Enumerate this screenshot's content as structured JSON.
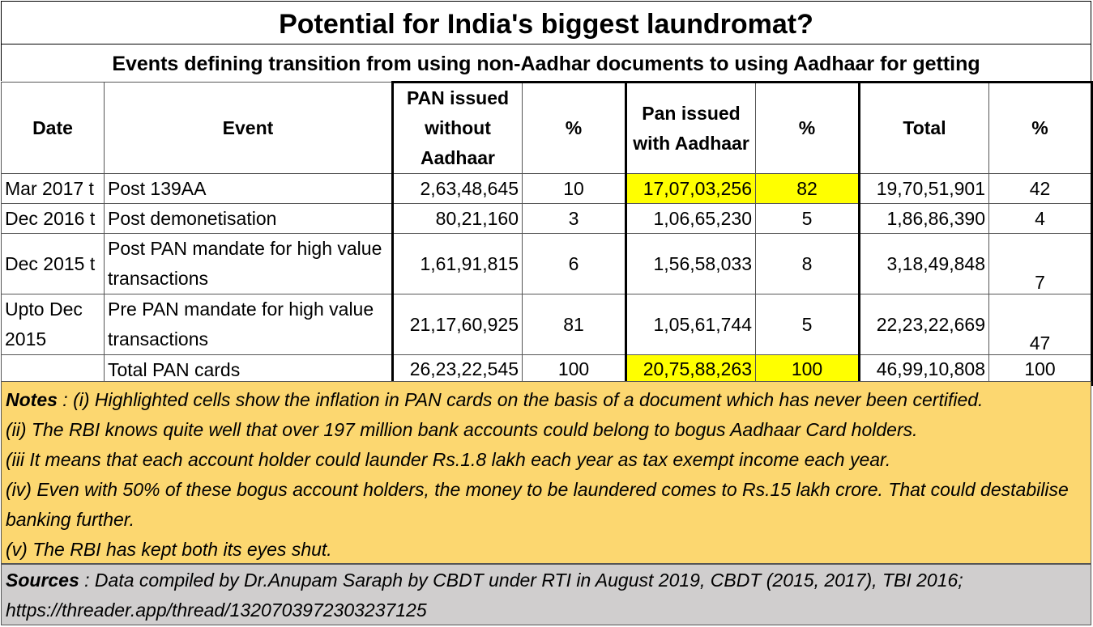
{
  "title": "Potential for India's biggest laundromat?",
  "subtitle": "Events defining transition from using non-Aadhar documents to using Aadhaar for getting",
  "headers": {
    "date": "Date",
    "event": "Event",
    "pan_without": "PAN issued without Aadhaar",
    "pct1": "%",
    "pan_with": "Pan issued with Aadhaar",
    "pct2": "%",
    "total": "Total",
    "pct3": "%"
  },
  "rows": [
    {
      "date": "Mar 2017 t",
      "event": "Post 139AA",
      "without": "2,63,48,645",
      "pct1": "10",
      "with": "17,07,03,256",
      "pct2": "82",
      "total": "19,70,51,901",
      "pct3": "42"
    },
    {
      "date": "Dec 2016 t",
      "event": "Post demonetisation",
      "without": "80,21,160",
      "pct1": "3",
      "with": "1,06,65,230",
      "pct2": "5",
      "total": "1,86,86,390",
      "pct3": "4"
    },
    {
      "date": "Dec 2015 t",
      "event": "Post PAN mandate for high value transactions",
      "without": "1,61,91,815",
      "pct1": "6",
      "with": "1,56,58,033",
      "pct2": "8",
      "total": "3,18,49,848",
      "pct3": "7"
    },
    {
      "date": "Upto Dec 2015",
      "event": "Pre PAN mandate for high value transactions",
      "without": "21,17,60,925",
      "pct1": "81",
      "with": "1,05,61,744",
      "pct2": "5",
      "total": "22,23,22,669",
      "pct3": "47"
    },
    {
      "date": "",
      "event": "Total PAN cards",
      "without": "26,23,22,545",
      "pct1": "100",
      "with": "20,75,88,263",
      "pct2": "100",
      "total": "46,99,10,808",
      "pct3": "100"
    }
  ],
  "notes": {
    "label": "Notes",
    "line1": " : (i) Highlighted cells show the inflation in PAN cards on the basis of a document which has never been certified.",
    "line2": "(ii) The RBI knows quite well that over 197 million bank accounts could belong to bogus Aadhaar Card holders.",
    "line3": "(iii It means that each account holder could launder Rs.1.8 lakh each year as tax exempt income each year.",
    "line4": "(iv) Even with 50% of these bogus account holders, the money to be laundered comes to Rs.15 lakh crore. That could destabilise banking further.",
    "line5": "(v) The RBI has kept both its eyes shut."
  },
  "sources": {
    "label": "Sources",
    "text": " : Data compiled by Dr.Anupam Saraph by CBDT under RTI in August 2019, CBDT (2015, 2017), TBI 2016;",
    "link": "https://threader.app/thread/1320703972303237125"
  },
  "colors": {
    "highlight": "#ffff00",
    "notes_bg": "#fcd770",
    "sources_bg": "#d0cece"
  }
}
